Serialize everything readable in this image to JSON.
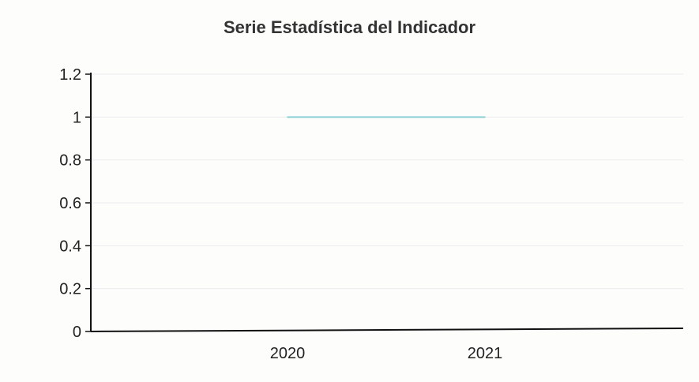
{
  "chart_data": {
    "type": "line",
    "title": "Serie Estadística del Indicador",
    "xlabel": "",
    "ylabel": "",
    "categories": [
      "2020",
      "2021"
    ],
    "series": [
      {
        "values": [
          1,
          1
        ],
        "color": "#8cd0d4"
      }
    ],
    "ylim": [
      0,
      1.2
    ],
    "yticks": [
      "0",
      "0.2",
      "0.4",
      "0.6",
      "0.8",
      "1",
      "1.2"
    ],
    "grid": true,
    "legend": "none"
  }
}
